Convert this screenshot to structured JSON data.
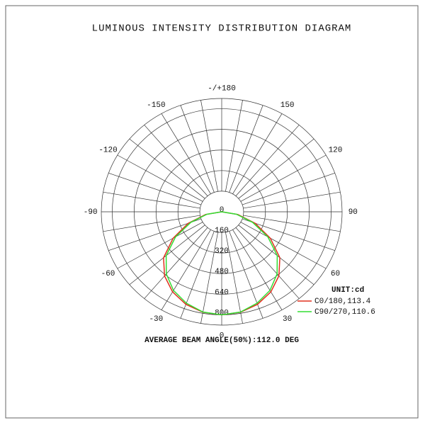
{
  "chart_data": {
    "type": "polar",
    "title": "LUMINOUS INTENSITY DISTRIBUTION DIAGRAM",
    "footer": "AVERAGE BEAM ANGLE(50%):112.0 DEG",
    "unit_label": "UNIT:cd",
    "theta": [
      -90,
      -80,
      -70,
      -60,
      -50,
      -40,
      -30,
      -20,
      -10,
      0,
      10,
      20,
      30,
      40,
      50,
      60,
      70,
      80,
      90
    ],
    "series": [
      {
        "name": "C0/180,113.4",
        "color": "#e0301e",
        "values": [
          0,
          120,
          260,
          410,
          555,
          650,
          718,
          765,
          792,
          800,
          792,
          765,
          718,
          650,
          555,
          410,
          260,
          120,
          0
        ]
      },
      {
        "name": "C90/270,110.6",
        "color": "#33dd33",
        "values": [
          0,
          110,
          240,
          390,
          530,
          630,
          705,
          755,
          790,
          800,
          790,
          755,
          705,
          630,
          530,
          390,
          240,
          110,
          0
        ]
      }
    ],
    "rlim": [
      0,
      880
    ],
    "rticks": [
      0,
      160,
      320,
      480,
      640,
      800
    ],
    "thetaticks": [
      -150,
      -120,
      -90,
      -60,
      -30,
      0,
      30,
      60,
      90,
      120,
      150,
      {
        "value": 180,
        "label": "-/+180"
      }
    ]
  }
}
